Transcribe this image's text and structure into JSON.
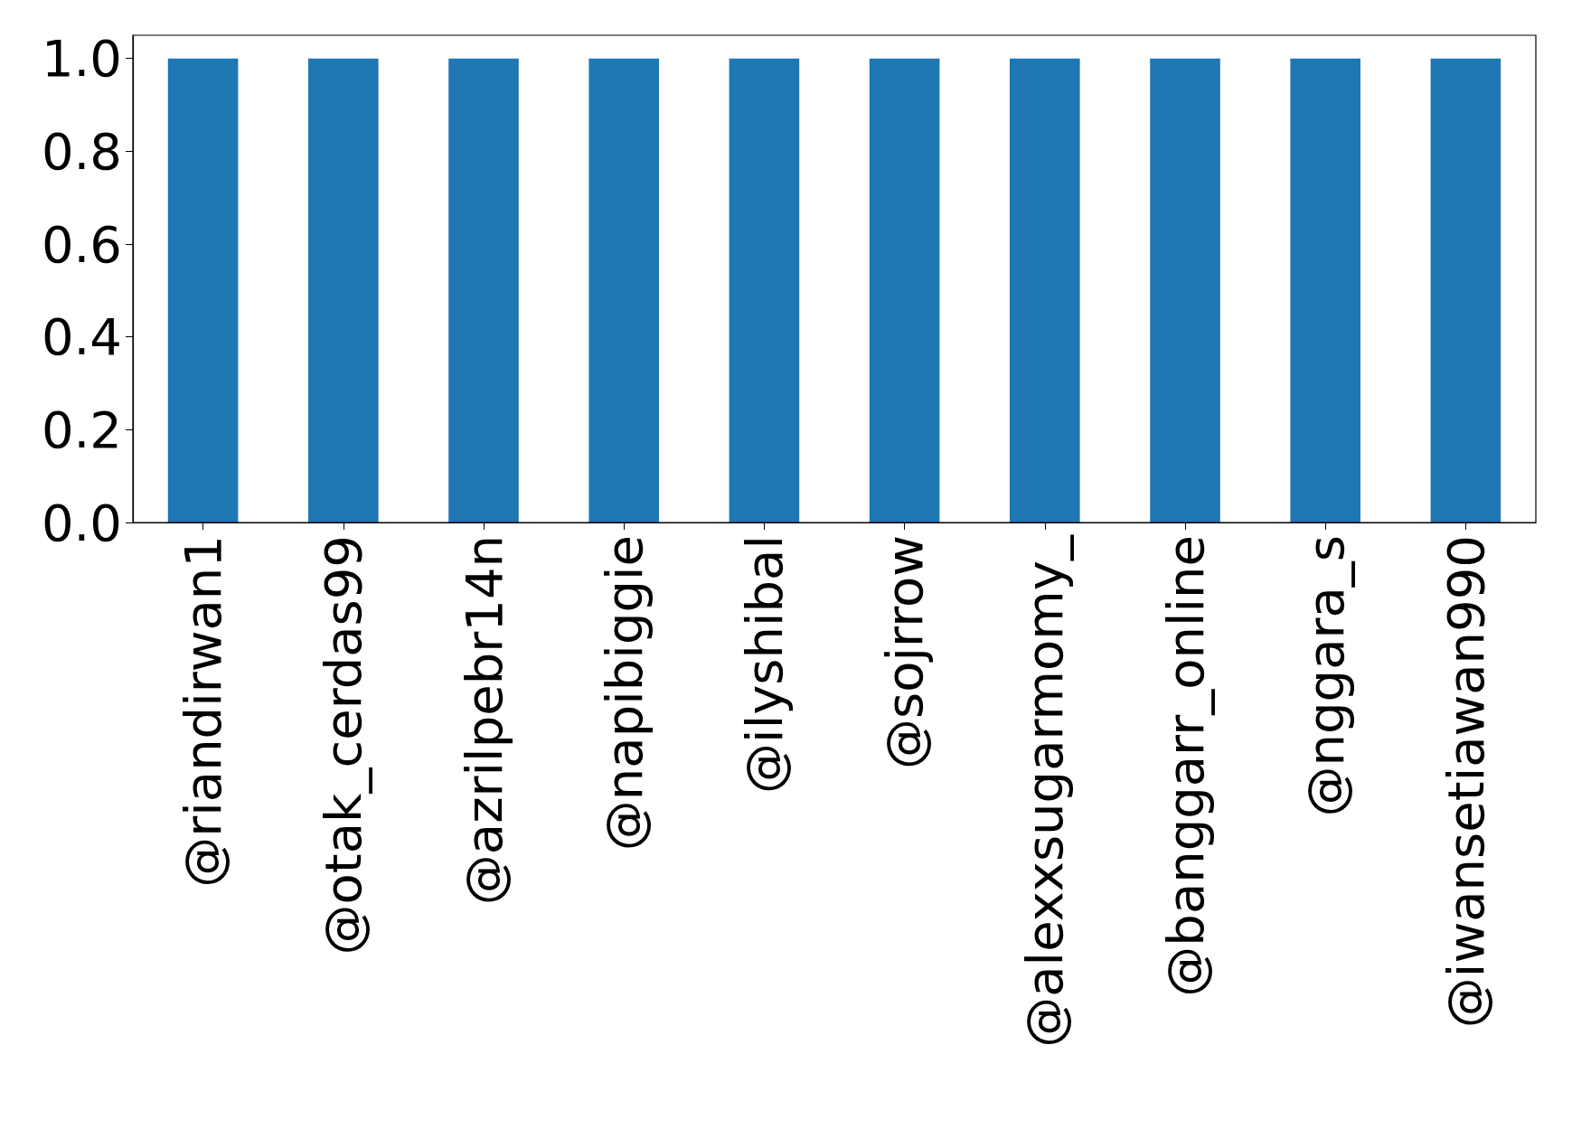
{
  "chart_data": {
    "type": "bar",
    "categories": [
      "@riandirwan1",
      "@otak_cerdas99",
      "@azrilpebr14n",
      "@napibiggie",
      "@ilyshibal",
      "@sojrrow",
      "@alexxsugarmomy_",
      "@banggarr_online",
      "@nggara_s",
      "@iwansetiawan990"
    ],
    "values": [
      1,
      1,
      1,
      1,
      1,
      1,
      1,
      1,
      1,
      1
    ],
    "color": "#1f77b4",
    "ylim": [
      0,
      1.05
    ],
    "yticks": [
      {
        "value": 0,
        "label": "0.0"
      },
      {
        "value": 0.2,
        "label": "0.2"
      },
      {
        "value": 0.4,
        "label": "0.4"
      },
      {
        "value": 0.6,
        "label": "0.6"
      },
      {
        "value": 0.8,
        "label": "0.8"
      },
      {
        "value": 1,
        "label": "1.0"
      }
    ],
    "grid": false
  }
}
